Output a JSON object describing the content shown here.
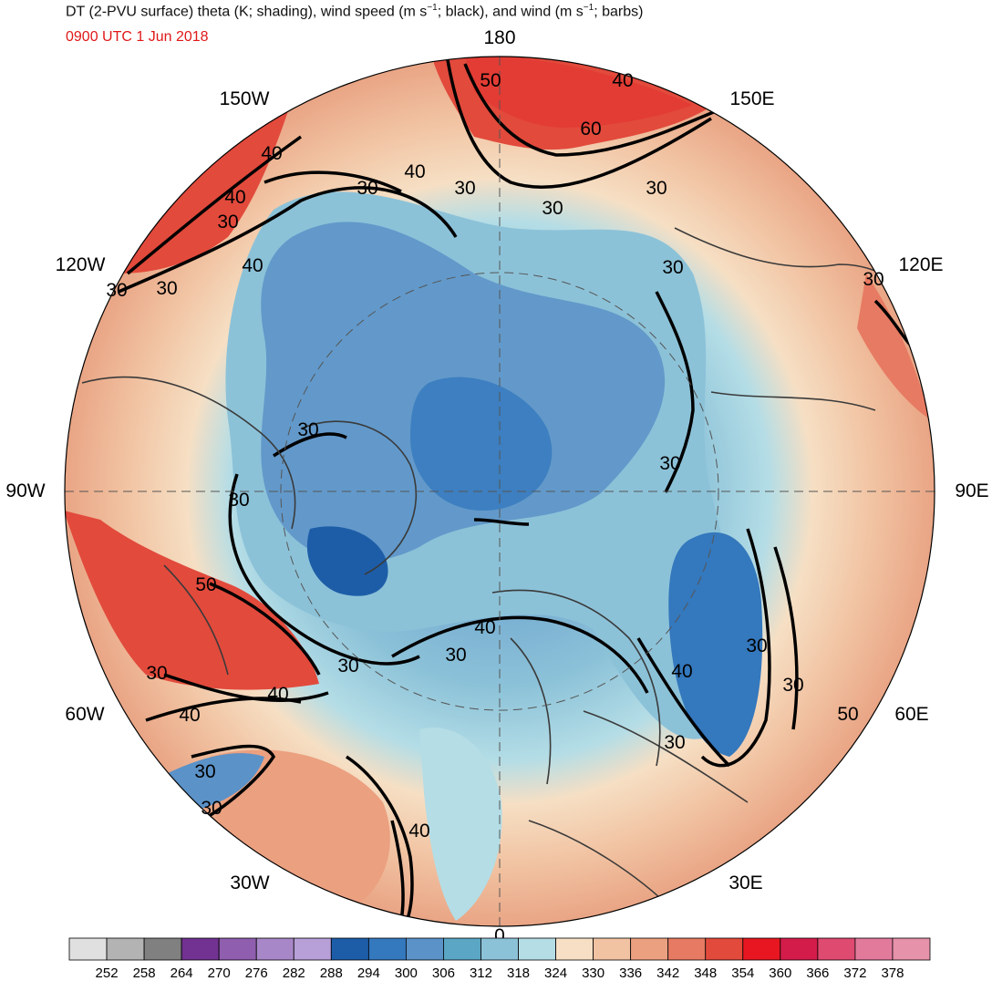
{
  "header": {
    "title_pre": "DT (2-PVU surface) theta (K; shading), wind speed (m s",
    "title_sup1": "−1",
    "title_mid": "; black), and wind (m s",
    "title_sup2": "−1",
    "title_post": "; barbs)",
    "valid_time": "0900 UTC 1 Jun 2018"
  },
  "map": {
    "projection": "north-polar-stereographic",
    "longitude_labels": [
      "180",
      "150E",
      "120E",
      "90E",
      "60E",
      "30E",
      "0",
      "30W",
      "60W",
      "90W",
      "120W",
      "150W"
    ],
    "contour_labels": [
      "50",
      "40",
      "60",
      "40",
      "30",
      "40",
      "30",
      "30",
      "40",
      "30",
      "30",
      "30",
      "30",
      "40",
      "30",
      "30",
      "30",
      "30",
      "30",
      "40",
      "30",
      "40",
      "30",
      "50",
      "30",
      "40",
      "50",
      "30",
      "30",
      "30",
      "40",
      "30",
      "40",
      "30"
    ],
    "colors": {
      "cold_core": "#4a80c0",
      "arctic": "#aed8e6",
      "midlat": "#f0c4a2",
      "warm": "#e4826a",
      "hot": "#e23c34",
      "contour": "#000000",
      "coastline": "#3a3a3a",
      "time_text": "#e01818"
    }
  },
  "colorbar": {
    "ticks": [
      "252",
      "258",
      "264",
      "270",
      "276",
      "282",
      "288",
      "294",
      "300",
      "306",
      "312",
      "318",
      "324",
      "330",
      "336",
      "342",
      "348",
      "354",
      "360",
      "366",
      "372",
      "378"
    ],
    "colors": [
      "#e0e0e0",
      "#b3b3b3",
      "#808080",
      "#713291",
      "#8f5eaf",
      "#a887c8",
      "#b7a0d8",
      "#1d5da8",
      "#3478bd",
      "#5b92c8",
      "#5aa6c4",
      "#8cc2d8",
      "#b4dde6",
      "#f6dfc4",
      "#f1c3a2",
      "#eba080",
      "#e77a62",
      "#e24a3c",
      "#e71620",
      "#d41c4a",
      "#de4a70",
      "#e27a9c",
      "#e592aa"
    ]
  }
}
